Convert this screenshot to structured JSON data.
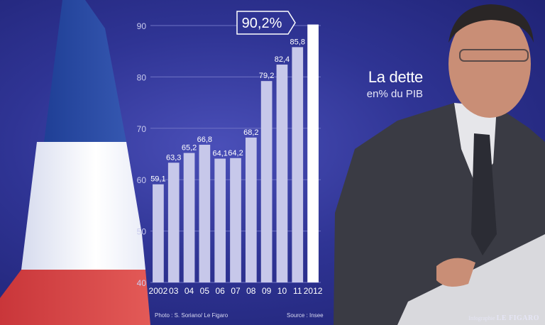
{
  "title": "La dette",
  "subtitle": "en% du PIB",
  "photo_credit": "Photo : S. Soriano/ Le Figaro",
  "source": "Source : Insee",
  "logo_small": "Infographie",
  "logo_big": "LE FIGARO",
  "highlight_label": "90,2%",
  "colors": {
    "bar": "#c7c8ea",
    "bar_highlight": "#ffffff",
    "background": "#2f3494"
  },
  "chart_data": {
    "type": "bar",
    "categories": [
      "2002",
      "03",
      "04",
      "05",
      "06",
      "07",
      "08",
      "09",
      "10",
      "11",
      "2012"
    ],
    "values": [
      59.1,
      63.3,
      65.2,
      66.8,
      64.1,
      64.2,
      68.2,
      79.2,
      82.4,
      85.8,
      90.2
    ],
    "value_labels": [
      "59,1",
      "63,3",
      "65,2",
      "66,8",
      "64,1",
      "64,2",
      "68,2",
      "79,2",
      "82,4",
      "85,8",
      ""
    ],
    "ylim": [
      40,
      90
    ],
    "yticks": [
      "40",
      "50",
      "60",
      "70",
      "80",
      "90"
    ],
    "grid": true,
    "highlight_index": 10
  }
}
